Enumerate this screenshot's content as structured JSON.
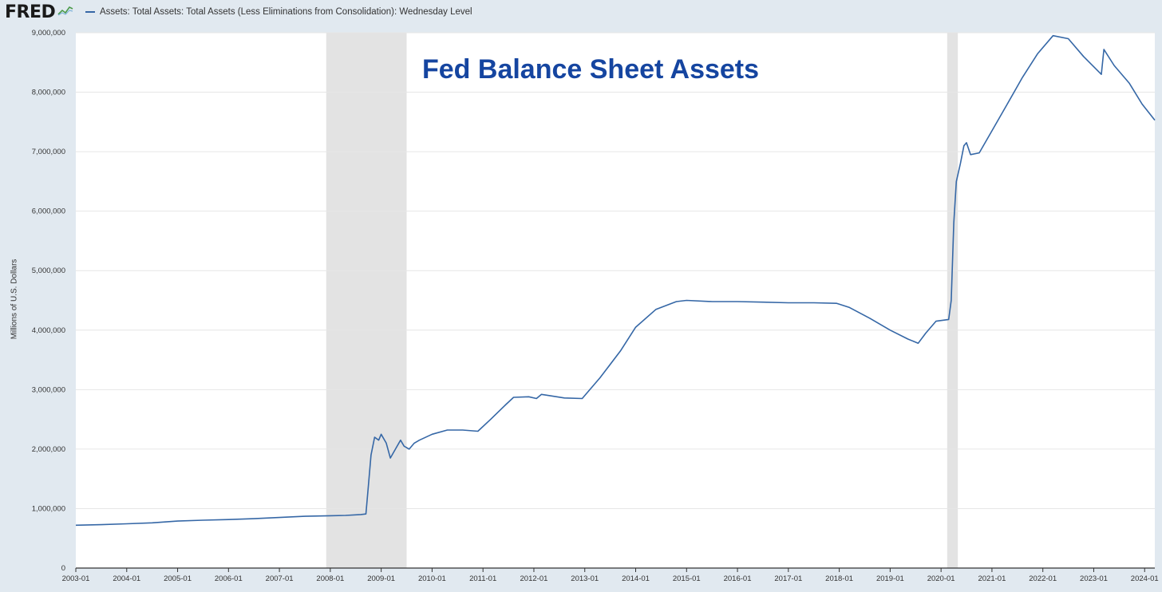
{
  "header": {
    "logo_text": "FRED",
    "logo_graph_icon": "line-graph-icon",
    "legend_label": "Assets: Total Assets: Total Assets (Less Eliminations from Consolidation): Wednesday Level",
    "legend_color": "#3567a6"
  },
  "chart_data": {
    "type": "line",
    "title": "",
    "annotation": "Fed Balance Sheet Assets",
    "annotation_color": "#1545a0",
    "ylabel": "Millions of U.S. Dollars",
    "xlabel": "",
    "ylim": [
      0,
      9000000
    ],
    "yticks": [
      0,
      1000000,
      2000000,
      3000000,
      4000000,
      5000000,
      6000000,
      7000000,
      8000000,
      9000000
    ],
    "ytick_labels": [
      "0",
      "1,000,000",
      "2,000,000",
      "3,000,000",
      "4,000,000",
      "5,000,000",
      "6,000,000",
      "7,000,000",
      "8,000,000",
      "9,000,000"
    ],
    "xlim": [
      2003.0,
      2024.2
    ],
    "xticks": [
      2003,
      2004,
      2005,
      2006,
      2007,
      2008,
      2009,
      2010,
      2011,
      2012,
      2013,
      2014,
      2015,
      2016,
      2017,
      2018,
      2019,
      2020,
      2021,
      2022,
      2023,
      2024
    ],
    "xtick_labels": [
      "2003-01",
      "2004-01",
      "2005-01",
      "2006-01",
      "2007-01",
      "2008-01",
      "2009-01",
      "2010-01",
      "2011-01",
      "2012-01",
      "2013-01",
      "2014-01",
      "2015-01",
      "2016-01",
      "2017-01",
      "2018-01",
      "2019-01",
      "2020-01",
      "2021-01",
      "2022-01",
      "2023-01",
      "2024-01"
    ],
    "grid": true,
    "line_color": "#3567a6",
    "recessions": [
      {
        "start": 2007.92,
        "end": 2009.5
      },
      {
        "start": 2020.12,
        "end": 2020.33
      }
    ],
    "recession_color": "#e3e3e3",
    "series": [
      {
        "name": "Assets: Total Assets: Total Assets (Less Eliminations from Consolidation): Wednesday Level",
        "points": [
          [
            2003.0,
            720000
          ],
          [
            2003.5,
            730000
          ],
          [
            2004.0,
            745000
          ],
          [
            2004.5,
            760000
          ],
          [
            2005.0,
            790000
          ],
          [
            2005.5,
            805000
          ],
          [
            2006.0,
            815000
          ],
          [
            2006.5,
            830000
          ],
          [
            2007.0,
            850000
          ],
          [
            2007.5,
            870000
          ],
          [
            2008.0,
            880000
          ],
          [
            2008.3,
            885000
          ],
          [
            2008.6,
            900000
          ],
          [
            2008.7,
            910000
          ],
          [
            2008.75,
            1400000
          ],
          [
            2008.8,
            1900000
          ],
          [
            2008.87,
            2200000
          ],
          [
            2008.95,
            2150000
          ],
          [
            2009.0,
            2250000
          ],
          [
            2009.1,
            2100000
          ],
          [
            2009.18,
            1850000
          ],
          [
            2009.28,
            2000000
          ],
          [
            2009.38,
            2150000
          ],
          [
            2009.45,
            2050000
          ],
          [
            2009.55,
            2000000
          ],
          [
            2009.65,
            2100000
          ],
          [
            2009.75,
            2150000
          ],
          [
            2010.0,
            2250000
          ],
          [
            2010.3,
            2320000
          ],
          [
            2010.6,
            2320000
          ],
          [
            2010.9,
            2300000
          ],
          [
            2011.15,
            2500000
          ],
          [
            2011.45,
            2750000
          ],
          [
            2011.6,
            2870000
          ],
          [
            2011.9,
            2880000
          ],
          [
            2012.05,
            2850000
          ],
          [
            2012.15,
            2920000
          ],
          [
            2012.3,
            2900000
          ],
          [
            2012.6,
            2860000
          ],
          [
            2012.95,
            2850000
          ],
          [
            2013.3,
            3200000
          ],
          [
            2013.7,
            3650000
          ],
          [
            2014.0,
            4050000
          ],
          [
            2014.4,
            4350000
          ],
          [
            2014.8,
            4480000
          ],
          [
            2015.0,
            4500000
          ],
          [
            2015.5,
            4480000
          ],
          [
            2016.0,
            4480000
          ],
          [
            2016.5,
            4470000
          ],
          [
            2017.0,
            4460000
          ],
          [
            2017.5,
            4460000
          ],
          [
            2017.95,
            4450000
          ],
          [
            2018.2,
            4380000
          ],
          [
            2018.6,
            4200000
          ],
          [
            2019.0,
            4000000
          ],
          [
            2019.35,
            3850000
          ],
          [
            2019.55,
            3780000
          ],
          [
            2019.7,
            3950000
          ],
          [
            2019.9,
            4150000
          ],
          [
            2020.15,
            4180000
          ],
          [
            2020.2,
            4500000
          ],
          [
            2020.25,
            5800000
          ],
          [
            2020.3,
            6500000
          ],
          [
            2020.38,
            6800000
          ],
          [
            2020.45,
            7100000
          ],
          [
            2020.5,
            7150000
          ],
          [
            2020.58,
            6950000
          ],
          [
            2020.75,
            6980000
          ],
          [
            2021.0,
            7350000
          ],
          [
            2021.3,
            7800000
          ],
          [
            2021.6,
            8250000
          ],
          [
            2021.9,
            8650000
          ],
          [
            2022.2,
            8950000
          ],
          [
            2022.5,
            8900000
          ],
          [
            2022.8,
            8600000
          ],
          [
            2023.15,
            8300000
          ],
          [
            2023.2,
            8720000
          ],
          [
            2023.4,
            8450000
          ],
          [
            2023.7,
            8150000
          ],
          [
            2023.95,
            7800000
          ],
          [
            2024.2,
            7530000
          ]
        ]
      }
    ]
  }
}
